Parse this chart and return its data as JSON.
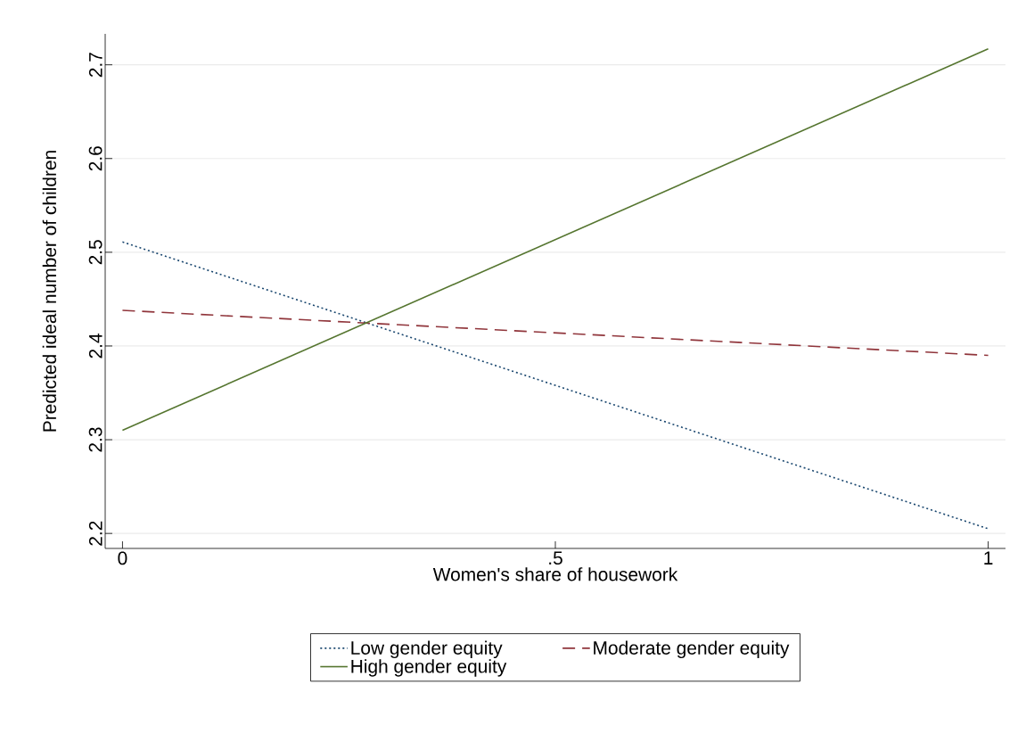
{
  "chart_data": {
    "type": "line",
    "xlabel": "Women's share of housework",
    "ylabel": "Predicted ideal number of children",
    "x": [
      0,
      1
    ],
    "series": [
      {
        "name": "Low gender equity",
        "color": "#1a476f",
        "line_style": "dotted",
        "values": [
          2.511,
          2.205
        ]
      },
      {
        "name": "Moderate gender equity",
        "color": "#90353b",
        "line_style": "dashed",
        "values": [
          2.438,
          2.39
        ]
      },
      {
        "name": "High gender equity",
        "color": "#55752f",
        "line_style": "solid",
        "values": [
          2.31,
          2.717
        ]
      }
    ],
    "xlim": [
      -0.02,
      1.02
    ],
    "ylim": [
      2.184,
      2.733
    ],
    "xticks": [
      0,
      {
        "value": 0.5,
        "label": ".5"
      },
      1
    ],
    "yticks": [
      2.2,
      2.3,
      2.4,
      2.5,
      2.6,
      2.7
    ],
    "grid": "y",
    "legend": "bottom",
    "marker": "none"
  }
}
